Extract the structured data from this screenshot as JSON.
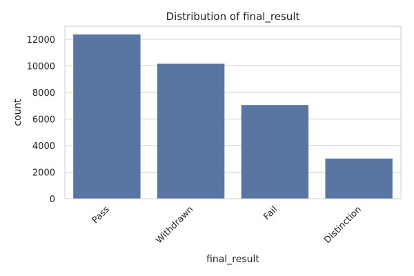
{
  "chart_data": {
    "type": "bar",
    "title": "Distribution of final_result",
    "xlabel": "final_result",
    "ylabel": "count",
    "categories": [
      "Pass",
      "Withdrawn",
      "Fail",
      "Distinction"
    ],
    "values": [
      12361,
      10156,
      7052,
      3024
    ],
    "ylim": [
      0,
      12980
    ],
    "yticks": [
      0,
      2000,
      4000,
      6000,
      8000,
      10000,
      12000
    ],
    "grid": true,
    "bar_color": "#5975a4",
    "grid_color": "#cccccc",
    "frame_color": "#cccccc"
  }
}
